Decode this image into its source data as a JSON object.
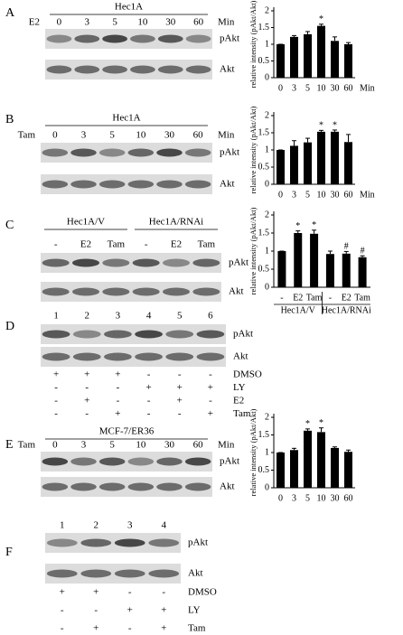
{
  "chart_data": [
    {
      "type": "bar",
      "ylabel": "relative intensity (pAkt/Akt)",
      "categories": [
        "0",
        "3",
        "5",
        "10",
        "30",
        "60"
      ],
      "values": [
        1,
        1.22,
        1.3,
        1.55,
        1.1,
        1.0
      ],
      "errors": [
        0,
        0.04,
        0.08,
        0.05,
        0.12,
        0.05
      ],
      "bar_labels": [
        null,
        null,
        null,
        "*",
        null,
        null
      ],
      "x_unit": "Min",
      "ylim": [
        0,
        2
      ],
      "yticks": [
        0,
        0.5,
        1,
        1.5,
        2
      ],
      "color": "#000000"
    },
    {
      "type": "bar",
      "ylabel": "relative intensity (pAkt/Akt)",
      "categories": [
        "0",
        "3",
        "5",
        "10",
        "30",
        "60"
      ],
      "values": [
        1,
        1.12,
        1.22,
        1.53,
        1.53,
        1.23
      ],
      "errors": [
        0,
        0.15,
        0.12,
        0.04,
        0.05,
        0.22
      ],
      "bar_labels": [
        null,
        null,
        null,
        "*",
        "*",
        null
      ],
      "x_unit": "Min",
      "ylim": [
        0,
        2
      ],
      "yticks": [
        0,
        0.5,
        1,
        1.5,
        2
      ],
      "color": "#000000"
    },
    {
      "type": "bar",
      "ylabel": "relative intensity (pAkt/Akt)",
      "categories": [
        "-",
        "E2",
        "Tam",
        "-",
        "E2",
        "Tam"
      ],
      "groups": [
        "Hec1A/V",
        "Hec1A/RNAi"
      ],
      "values": [
        1,
        1.5,
        1.48,
        0.92,
        0.93,
        0.83
      ],
      "errors": [
        0,
        0.06,
        0.1,
        0.08,
        0.06,
        0.04
      ],
      "bar_labels": [
        null,
        "*",
        "*",
        null,
        "#",
        "#"
      ],
      "ylim": [
        0,
        2
      ],
      "yticks": [
        0,
        0.5,
        1,
        1.5,
        2
      ],
      "color": "#000000"
    },
    {
      "type": "bar",
      "ylabel": "relative intensity (pAkt/Akt)",
      "categories": [
        "0",
        "3",
        "5",
        "10",
        "30",
        "60"
      ],
      "values": [
        1,
        1.07,
        1.62,
        1.58,
        1.13,
        1.02
      ],
      "errors": [
        0,
        0.05,
        0.05,
        0.12,
        0.03,
        0.05
      ],
      "bar_labels": [
        null,
        null,
        "*",
        "*",
        null,
        null
      ],
      "ylim": [
        0,
        2
      ],
      "yticks": [
        0,
        0.5,
        1,
        1.5,
        2
      ],
      "color": "#000000"
    }
  ],
  "blots": [
    {
      "label": "A",
      "cell_line": "Hec1A",
      "treatment": "E2",
      "lanes": [
        "0",
        "3",
        "5",
        "10",
        "30",
        "60"
      ],
      "unit": "Min",
      "bands": [
        "pAkt",
        "Akt"
      ]
    },
    {
      "label": "B",
      "cell_line": "Hec1A",
      "treatment": "Tam",
      "lanes": [
        "0",
        "3",
        "5",
        "10",
        "30",
        "60"
      ],
      "unit": "Min",
      "bands": [
        "pAkt",
        "Akt"
      ]
    },
    {
      "label": "C",
      "groups": [
        "Hec1A/V",
        "Hec1A/RNAi"
      ],
      "lanes": [
        "-",
        "E2",
        "Tam",
        "-",
        "E2",
        "Tam"
      ],
      "bands": [
        "pAkt",
        "Akt"
      ]
    },
    {
      "label": "D",
      "lanes": [
        "1",
        "2",
        "3",
        "4",
        "5",
        "6"
      ],
      "bands": [
        "pAkt",
        "Akt"
      ],
      "treatments": [
        {
          "name": "DMSO",
          "signs": [
            "+",
            "+",
            "+",
            "-",
            "-",
            "-"
          ]
        },
        {
          "name": "LY",
          "signs": [
            "-",
            "-",
            "-",
            "+",
            "+",
            "+"
          ]
        },
        {
          "name": "E2",
          "signs": [
            "-",
            "+",
            "-",
            "-",
            "+",
            "-"
          ]
        },
        {
          "name": "Tam",
          "signs": [
            "-",
            "-",
            "+",
            "-",
            "-",
            "+"
          ]
        }
      ]
    },
    {
      "label": "E",
      "cell_line": "MCF-7/ER36",
      "treatment": "Tam",
      "lanes": [
        "0",
        "3",
        "5",
        "10",
        "30",
        "60"
      ],
      "unit": "Min",
      "bands": [
        "pAkt",
        "Akt"
      ]
    },
    {
      "label": "F",
      "lanes": [
        "1",
        "2",
        "3",
        "4"
      ],
      "bands": [
        "pAkt",
        "Akt"
      ],
      "treatments": [
        {
          "name": "DMSO",
          "signs": [
            "+",
            "+",
            "-",
            "-"
          ]
        },
        {
          "name": "LY",
          "signs": [
            "-",
            "-",
            "+",
            "+"
          ]
        },
        {
          "name": "Tam",
          "signs": [
            "-",
            "+",
            "-",
            "+"
          ]
        }
      ]
    }
  ]
}
